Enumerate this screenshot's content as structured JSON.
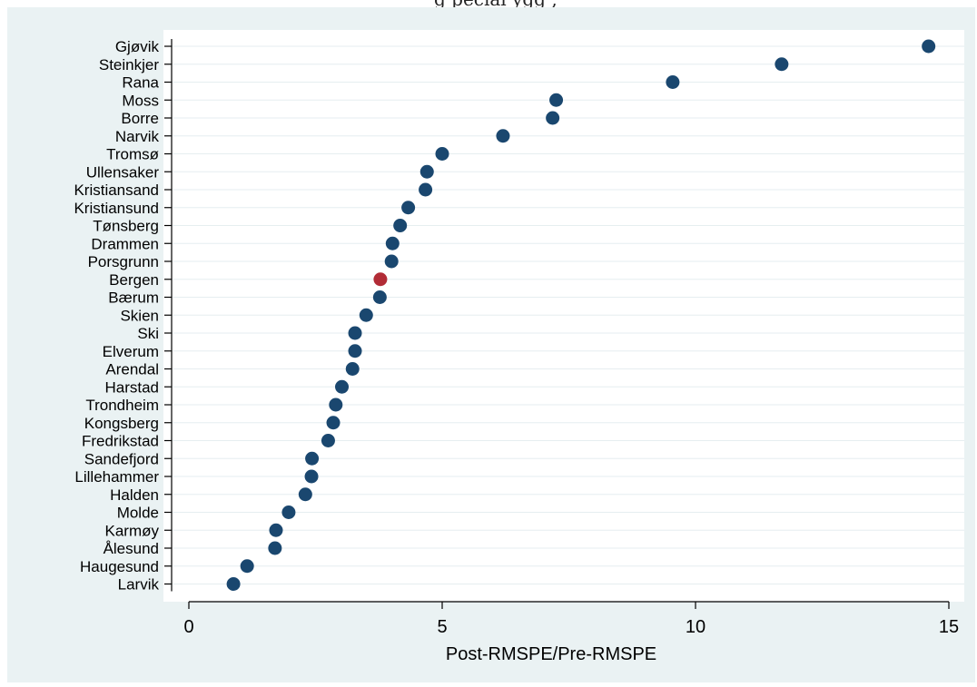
{
  "header": {
    "clipped_title_fragment": "g pecial ygg ,"
  },
  "chart_data": {
    "type": "scatter",
    "orientation": "horizontal-dot",
    "title": "",
    "xlabel": "Post-RMSPE/Pre-RMSPE",
    "ylabel": "",
    "xlim": [
      0,
      15
    ],
    "xticks": [
      0,
      5,
      10,
      15
    ],
    "grid": true,
    "legend": "none",
    "colors": {
      "default_point": "#1a476f",
      "highlight_point": "#b22c36",
      "plot_background": "#ffffff",
      "outer_background": "#eaf2f3",
      "gridline": "#e6eef0"
    },
    "highlight": "Bergen",
    "categories": [
      "Gjøvik",
      "Steinkjer",
      "Rana",
      "Moss",
      "Borre",
      "Narvik",
      "Tromsø",
      "Ullensaker",
      "Kristiansand",
      "Kristiansund",
      "Tønsberg",
      "Drammen",
      "Porsgrunn",
      "Bergen",
      "Bærum",
      "Skien",
      "Ski",
      "Elverum",
      "Arendal",
      "Harstad",
      "Trondheim",
      "Kongsberg",
      "Fredrikstad",
      "Sandefjord",
      "Lillehammer",
      "Halden",
      "Molde",
      "Karmøy",
      "Ålesund",
      "Haugesund",
      "Larvik"
    ],
    "values": [
      14.6,
      11.7,
      9.55,
      7.25,
      7.18,
      6.2,
      5.0,
      4.7,
      4.67,
      4.33,
      4.17,
      4.02,
      4.0,
      3.78,
      3.77,
      3.5,
      3.28,
      3.28,
      3.23,
      3.02,
      2.9,
      2.85,
      2.75,
      2.43,
      2.42,
      2.3,
      1.97,
      1.72,
      1.7,
      1.15,
      0.88
    ]
  }
}
